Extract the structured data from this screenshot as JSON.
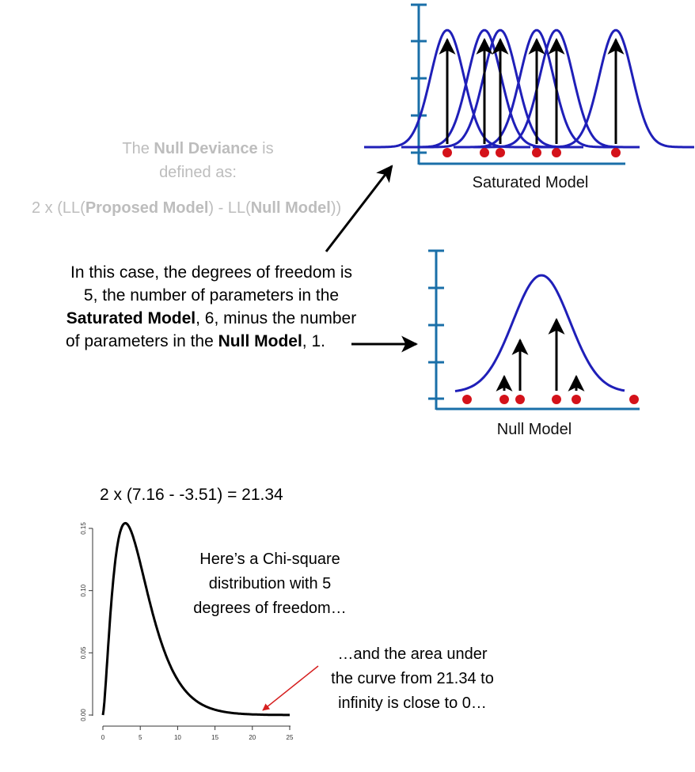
{
  "null_deviance": {
    "line1_pre": "The ",
    "line1_bold": "Null Deviance",
    "line1_post": " is",
    "line2": "defined as:",
    "formula_pre": "2 x (LL(",
    "formula_bold1": "Proposed Model",
    "formula_mid": ") - LL(",
    "formula_bold2": "Null Model",
    "formula_post": "))"
  },
  "explanation": {
    "line1": "In this case, the degrees of freedom is",
    "line2": "5, the number of parameters in the",
    "line3_bold": "Saturated Model",
    "line3_post": ", 6, minus the number",
    "line4_pre": "of parameters in the ",
    "line4_bold": "Null Model",
    "line4_post": ", 1."
  },
  "saturated_label": "Saturated Model",
  "null_label": "Null Model",
  "calculation": "2 x (7.16 - -3.51) = 21.34",
  "chi_note": {
    "line1": "Here’s a Chi-square",
    "line2": "distribution with 5",
    "line3": "degrees of freedom…"
  },
  "area_note": {
    "line1": "…and the area under",
    "line2": "the curve from 21.34 to",
    "line3": "infinity is close to 0…"
  },
  "colors": {
    "axis": "#1a6fa8",
    "curve": "#1f1fb8",
    "point": "#d4121a",
    "arrow": "#000000",
    "pointer": "#d62020"
  },
  "chart_data": {
    "type": "line",
    "series": [
      {
        "distribution": "chi-square",
        "df": 5
      }
    ],
    "xlim": [
      0,
      25
    ],
    "ylim": [
      0,
      0.15
    ],
    "x_ticks": [
      "0",
      "5",
      "10",
      "15",
      "20",
      "25"
    ],
    "y_ticks": [
      "0.00",
      "0.05",
      "0.10",
      "0.15"
    ],
    "annotation_x": 21.34
  }
}
